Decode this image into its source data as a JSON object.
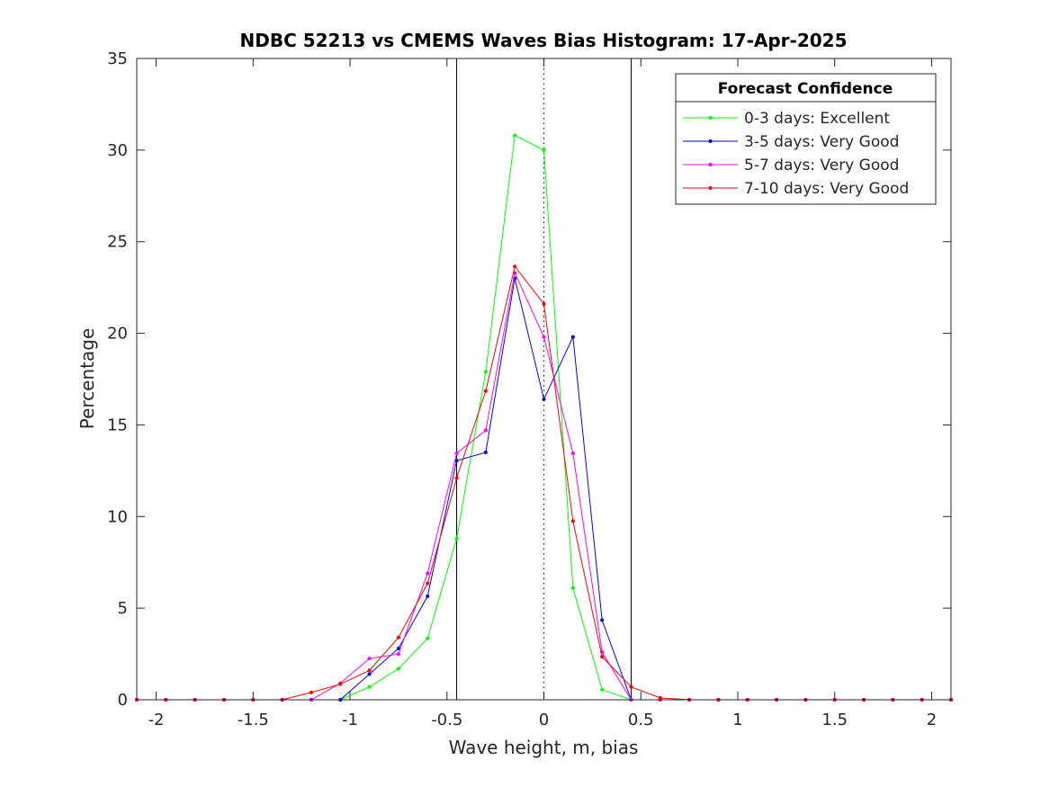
{
  "chart_data": {
    "type": "line",
    "title": "NDBC 52213 vs CMEMS Waves Bias Histogram: 17-Apr-2025",
    "xlabel": "Wave height, m, bias",
    "ylabel": "Percentage",
    "xlim": [
      -2.1,
      2.1
    ],
    "ylim": [
      0,
      35
    ],
    "xticks": [
      -2,
      -1.5,
      -1,
      -0.5,
      0,
      0.5,
      1,
      1.5,
      2
    ],
    "xtick_labels": [
      "-2",
      "-1.5",
      "-1",
      "-0.5",
      "0",
      "0.5",
      "1",
      "1.5",
      "2"
    ],
    "yticks": [
      0,
      5,
      10,
      15,
      20,
      25,
      30,
      35
    ],
    "ytick_labels": [
      "0",
      "5",
      "10",
      "15",
      "20",
      "25",
      "30",
      "35"
    ],
    "grid": false,
    "vertical_lines": [
      {
        "x": -0.45,
        "style": "solid",
        "color": "#000000"
      },
      {
        "x": 0.45,
        "style": "solid",
        "color": "#000000"
      },
      {
        "x": 0,
        "style": "dotted",
        "color": "#000000"
      }
    ],
    "legend": {
      "title": "Forecast Confidence",
      "location": "top-right"
    },
    "series": [
      {
        "name": "0-3 days: Excellent",
        "color": "#00ff00",
        "x": [
          -2.1,
          -1.95,
          -1.8,
          -1.65,
          -1.5,
          -1.35,
          -1.2,
          -1.05,
          -0.9,
          -0.75,
          -0.6,
          -0.45,
          -0.3,
          -0.15,
          0,
          0.15,
          0.3,
          0.45,
          0.6,
          0.75,
          0.9,
          1.05,
          1.2,
          1.35,
          1.5,
          1.65,
          1.8,
          1.95,
          2.1
        ],
        "values": [
          0,
          0,
          0,
          0,
          0,
          0,
          0,
          0,
          0.7,
          1.7,
          3.35,
          8.8,
          17.9,
          30.8,
          30.0,
          6.1,
          0.55,
          0,
          0,
          0,
          0,
          0,
          0,
          0,
          0,
          0,
          0,
          0,
          0
        ]
      },
      {
        "name": "3-5 days: Very Good",
        "color": "#0000ff",
        "x": [
          -2.1,
          -1.95,
          -1.8,
          -1.65,
          -1.5,
          -1.35,
          -1.2,
          -1.05,
          -0.9,
          -0.75,
          -0.6,
          -0.45,
          -0.3,
          -0.15,
          0,
          0.15,
          0.3,
          0.45,
          0.6,
          0.75,
          0.9,
          1.05,
          1.2,
          1.35,
          1.5,
          1.65,
          1.8,
          1.95,
          2.1
        ],
        "values": [
          0,
          0,
          0,
          0,
          0,
          0,
          0,
          0,
          1.4,
          2.8,
          5.65,
          13.05,
          13.5,
          23.0,
          16.4,
          19.8,
          4.35,
          0,
          0,
          0,
          0,
          0,
          0,
          0,
          0,
          0,
          0,
          0,
          0
        ]
      },
      {
        "name": "5-7 days: Very Good",
        "color": "#ff00ff",
        "x": [
          -2.1,
          -1.95,
          -1.8,
          -1.65,
          -1.5,
          -1.35,
          -1.2,
          -1.05,
          -0.9,
          -0.75,
          -0.6,
          -0.45,
          -0.3,
          -0.15,
          0,
          0.15,
          0.3,
          0.45,
          0.6,
          0.75,
          0.9,
          1.05,
          1.2,
          1.35,
          1.5,
          1.65,
          1.8,
          1.95,
          2.1
        ],
        "values": [
          0,
          0,
          0,
          0,
          0,
          0,
          0,
          0.9,
          2.25,
          2.5,
          6.9,
          13.45,
          14.7,
          23.3,
          19.8,
          13.45,
          2.6,
          0,
          0,
          0,
          0,
          0,
          0,
          0,
          0,
          0,
          0,
          0,
          0
        ]
      },
      {
        "name": "7-10 days: Very Good",
        "color": "#ff0000",
        "x": [
          -2.1,
          -1.95,
          -1.8,
          -1.65,
          -1.5,
          -1.35,
          -1.2,
          -1.05,
          -0.9,
          -0.75,
          -0.6,
          -0.45,
          -0.3,
          -0.15,
          0,
          0.15,
          0.3,
          0.45,
          0.6,
          0.75,
          0.9,
          1.05,
          1.2,
          1.35,
          1.5,
          1.65,
          1.8,
          1.95,
          2.1
        ],
        "values": [
          0,
          0,
          0,
          0,
          0,
          0,
          0.4,
          0.85,
          1.6,
          3.4,
          6.35,
          12.1,
          16.85,
          23.65,
          21.6,
          9.75,
          2.35,
          0.7,
          0.1,
          0,
          0,
          0,
          0,
          0,
          0,
          0,
          0,
          0,
          0
        ]
      }
    ]
  }
}
